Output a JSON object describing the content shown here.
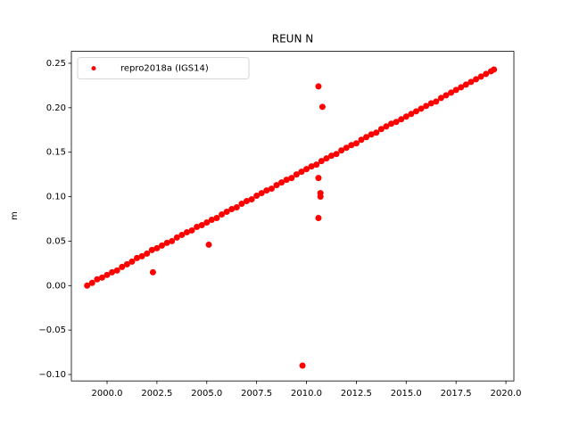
{
  "chart_data": {
    "type": "scatter",
    "title": "REUN N",
    "y_label": "m",
    "xlim": [
      1998.21,
      2020.4
    ],
    "ylim": [
      -0.1072,
      0.2634
    ],
    "xticks": [
      {
        "value": 2000,
        "label": "2000.0"
      },
      {
        "value": 2002.5,
        "label": "2002.5"
      },
      {
        "value": 2005,
        "label": "2005.0"
      },
      {
        "value": 2007.5,
        "label": "2007.5"
      },
      {
        "value": 2010,
        "label": "2010.0"
      },
      {
        "value": 2012.5,
        "label": "2012.5"
      },
      {
        "value": 2015,
        "label": "2015.0"
      },
      {
        "value": 2017.5,
        "label": "2017.5"
      },
      {
        "value": 2020,
        "label": "2020.0"
      }
    ],
    "yticks": [
      {
        "value": -0.1,
        "label": "−0.10"
      },
      {
        "value": -0.05,
        "label": "−0.05"
      },
      {
        "value": 0,
        "label": "0.00"
      },
      0.05,
      {
        "value": 0.1,
        "label": "0.10"
      },
      0.15,
      {
        "value": 0.2,
        "label": "0.20"
      },
      0.25
    ],
    "legend": "upper left",
    "series": [
      {
        "name": "repro2018a (IGS14)",
        "color": "#ff0000",
        "x": [
          1999,
          1999.25,
          1999.5,
          1999.75,
          2000,
          2000.25,
          2000.5,
          2000.75,
          2001,
          2001.25,
          2001.5,
          2001.75,
          2002,
          2002.25,
          2002.5,
          2002.75,
          2003,
          2003.25,
          2003.5,
          2003.75,
          2004,
          2004.25,
          2004.5,
          2004.75,
          2005,
          2005.25,
          2005.5,
          2005.75,
          2006,
          2006.25,
          2006.5,
          2006.75,
          2007,
          2007.25,
          2007.5,
          2007.75,
          2008,
          2008.25,
          2008.5,
          2008.75,
          2009,
          2009.25,
          2009.5,
          2009.75,
          2010,
          2010.25,
          2010.5,
          2010.75,
          2011,
          2011.25,
          2011.5,
          2011.75,
          2012,
          2012.25,
          2012.5,
          2012.75,
          2013,
          2013.25,
          2013.5,
          2013.75,
          2014,
          2014.25,
          2014.5,
          2014.75,
          2015,
          2015.25,
          2015.5,
          2015.75,
          2016,
          2016.25,
          2016.5,
          2016.75,
          2017,
          2017.25,
          2017.5,
          2017.75,
          2018,
          2018.25,
          2018.5,
          2018.75,
          2019,
          2019.25,
          2019.4,
          2002.3,
          2005.1,
          2009.8,
          2010.6,
          2010.8,
          2010.6,
          2010.7,
          2010.7,
          2010.6
        ],
        "values": [
          0.0,
          0.003,
          0.007,
          0.009,
          0.012,
          0.015,
          0.017,
          0.021,
          0.024,
          0.027,
          0.031,
          0.033,
          0.036,
          0.04,
          0.042,
          0.045,
          0.048,
          0.05,
          0.054,
          0.057,
          0.06,
          0.062,
          0.066,
          0.068,
          0.071,
          0.074,
          0.076,
          0.08,
          0.083,
          0.086,
          0.088,
          0.092,
          0.095,
          0.097,
          0.101,
          0.104,
          0.107,
          0.109,
          0.113,
          0.116,
          0.119,
          0.121,
          0.125,
          0.128,
          0.131,
          0.134,
          0.136,
          0.14,
          0.143,
          0.146,
          0.148,
          0.152,
          0.155,
          0.158,
          0.16,
          0.164,
          0.167,
          0.17,
          0.172,
          0.176,
          0.179,
          0.182,
          0.184,
          0.187,
          0.19,
          0.193,
          0.196,
          0.199,
          0.202,
          0.205,
          0.207,
          0.211,
          0.214,
          0.217,
          0.22,
          0.223,
          0.226,
          0.229,
          0.232,
          0.235,
          0.238,
          0.241,
          0.243,
          0.015,
          0.046,
          -0.09,
          0.224,
          0.201,
          0.121,
          0.104,
          0.1,
          0.076
        ]
      }
    ]
  }
}
